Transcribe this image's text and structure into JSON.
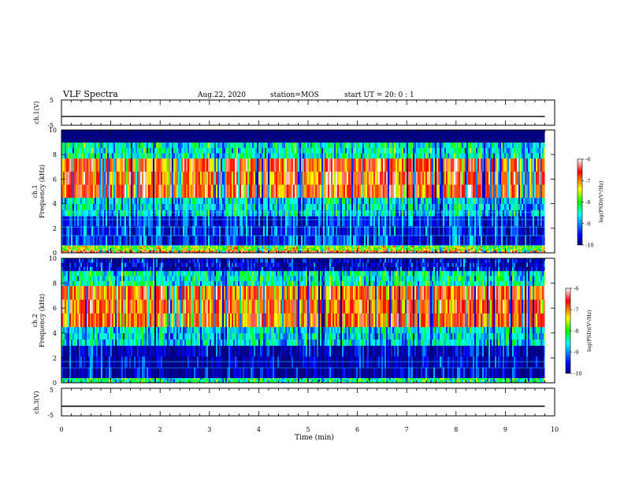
{
  "header": {
    "title": "VLF Spectra",
    "date": "Aug.22, 2020",
    "station": "station=MOS",
    "start": "start UT =  20: 0  : 1"
  },
  "chart_data": [
    {
      "type": "line",
      "name": "ch1-voltage",
      "ylabel": "ch.1(V)",
      "ylim": [
        -5,
        5
      ],
      "yticks": [
        "5",
        "-5"
      ],
      "xlim": [
        0,
        10
      ],
      "x": [
        0,
        9.8
      ],
      "values": [
        -1.5,
        -1.5
      ]
    },
    {
      "type": "heatmap",
      "name": "ch1-spectrogram",
      "ylabel": [
        "ch.1",
        "Frequency (kHz)"
      ],
      "ylim": [
        0,
        10
      ],
      "yticks": [
        "0",
        "2",
        "4",
        "6",
        "8",
        "10"
      ],
      "xlim": [
        0,
        9.8
      ],
      "colorbar": {
        "label": "log(PSD)(V²/Hz)",
        "ticks": [
          "-6",
          "-7",
          "-8",
          "-9",
          "-10"
        ],
        "range": [
          -10,
          -6
        ]
      },
      "layers_khz": [
        {
          "from": 0.0,
          "to": 0.2,
          "level": -6.6
        },
        {
          "from": 0.2,
          "to": 0.6,
          "level": -7.6
        },
        {
          "from": 0.6,
          "to": 3.0,
          "level": -9.3
        },
        {
          "from": 3.0,
          "to": 4.5,
          "level": -8.6
        },
        {
          "from": 4.5,
          "to": 7.7,
          "level": -6.8
        },
        {
          "from": 7.7,
          "to": 9.0,
          "level": -8.4
        },
        {
          "from": 9.0,
          "to": 10.0,
          "level": -10.0
        }
      ]
    },
    {
      "type": "heatmap",
      "name": "ch2-spectrogram",
      "ylabel": [
        "ch.2",
        "Frequency (kHz)"
      ],
      "ylim": [
        0,
        10
      ],
      "yticks": [
        "0",
        "2",
        "4",
        "6",
        "8",
        "10"
      ],
      "xlim": [
        0,
        9.8
      ],
      "colorbar": {
        "label": "log(PSD)(V²/Hz)",
        "ticks": [
          "-6",
          "-7",
          "-8",
          "-9",
          "-10"
        ],
        "range": [
          -10,
          -6
        ]
      },
      "layers_khz": [
        {
          "from": 0.0,
          "to": 0.4,
          "level": -8.2
        },
        {
          "from": 0.4,
          "to": 3.0,
          "level": -9.7
        },
        {
          "from": 3.0,
          "to": 4.5,
          "level": -8.6
        },
        {
          "from": 4.5,
          "to": 7.8,
          "level": -6.9
        },
        {
          "from": 7.8,
          "to": 9.0,
          "level": -8.4
        },
        {
          "from": 9.0,
          "to": 10.0,
          "level": -9.6
        }
      ]
    },
    {
      "type": "line",
      "name": "ch3-voltage",
      "ylabel": "ch.3(V)",
      "ylim": [
        -5,
        5
      ],
      "yticks": [
        "5",
        "-5"
      ],
      "xlim": [
        0,
        10
      ],
      "x": [
        0,
        9.8
      ],
      "values": [
        -1.5,
        -1.5
      ]
    }
  ],
  "xaxis": {
    "label": "Time (min)",
    "ticks": [
      "0",
      "1",
      "2",
      "3",
      "4",
      "5",
      "6",
      "7",
      "8",
      "9",
      "10"
    ],
    "range": [
      0,
      10
    ]
  },
  "colors": {
    "colormap": [
      "#000080",
      "#0000ff",
      "#00ffff",
      "#00ff00",
      "#ffff00",
      "#ff0000",
      "#ffffff"
    ],
    "line": "#000000"
  }
}
